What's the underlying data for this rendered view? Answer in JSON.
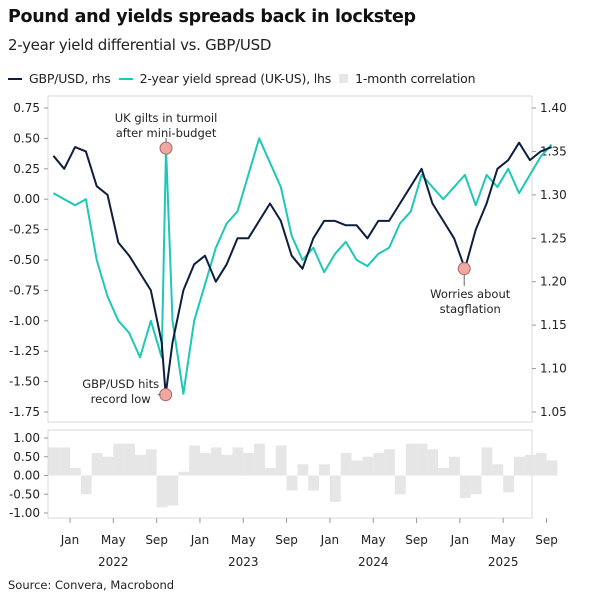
{
  "title": "Pound and yields spreads back in lockstep",
  "subtitle": "2-year yield differential vs. GBP/USD",
  "source": "Source: Convera, Macrobond",
  "colors": {
    "gbp": "#0d1f3c",
    "spread": "#1ec8b4",
    "corr": "#e6e6e6",
    "marker": "#f0a8a0"
  },
  "chart_data": [
    {
      "type": "line",
      "legend_position": "top",
      "series": [
        {
          "name": "GBP/USD, rhs",
          "axis": "right",
          "x": [
            "2021-11",
            "2021-12",
            "2022-01",
            "2022-02",
            "2022-03",
            "2022-04",
            "2022-05",
            "2022-06",
            "2022-07",
            "2022-08",
            "2022-09",
            "2022-09-26",
            "2022-10",
            "2022-11",
            "2022-12",
            "2023-01",
            "2023-02",
            "2023-03",
            "2023-04",
            "2023-05",
            "2023-06",
            "2023-07",
            "2023-08",
            "2023-09",
            "2023-10",
            "2023-11",
            "2023-12",
            "2024-01",
            "2024-02",
            "2024-03",
            "2024-04",
            "2024-05",
            "2024-06",
            "2024-07",
            "2024-08",
            "2024-09",
            "2024-10",
            "2024-11",
            "2024-12",
            "2025-01",
            "2025-02",
            "2025-03",
            "2025-04",
            "2025-05",
            "2025-06",
            "2025-07",
            "2025-08",
            "2025-09"
          ],
          "values": [
            1.345,
            1.33,
            1.355,
            1.35,
            1.31,
            1.3,
            1.245,
            1.23,
            1.21,
            1.19,
            1.13,
            1.07,
            1.13,
            1.19,
            1.22,
            1.23,
            1.2,
            1.22,
            1.25,
            1.25,
            1.27,
            1.29,
            1.27,
            1.23,
            1.215,
            1.25,
            1.27,
            1.27,
            1.265,
            1.265,
            1.25,
            1.27,
            1.27,
            1.29,
            1.31,
            1.33,
            1.29,
            1.27,
            1.25,
            1.215,
            1.26,
            1.29,
            1.33,
            1.34,
            1.36,
            1.34,
            1.35,
            1.355
          ]
        },
        {
          "name": "2-year yield spread (UK-US), lhs",
          "axis": "left",
          "x": [
            "2021-11",
            "2021-12",
            "2022-01",
            "2022-02",
            "2022-03",
            "2022-04",
            "2022-05",
            "2022-06",
            "2022-07",
            "2022-08",
            "2022-09",
            "2022-09-27",
            "2022-10",
            "2022-11",
            "2022-12",
            "2023-01",
            "2023-02",
            "2023-03",
            "2023-04",
            "2023-05",
            "2023-06",
            "2023-07",
            "2023-08",
            "2023-09",
            "2023-10",
            "2023-11",
            "2023-12",
            "2024-01",
            "2024-02",
            "2024-03",
            "2024-04",
            "2024-05",
            "2024-06",
            "2024-07",
            "2024-08",
            "2024-09",
            "2024-10",
            "2024-11",
            "2024-12",
            "2025-01",
            "2025-02",
            "2025-03",
            "2025-04",
            "2025-05",
            "2025-06",
            "2025-07",
            "2025-08",
            "2025-09"
          ],
          "values": [
            0.05,
            0.0,
            -0.05,
            0.0,
            -0.5,
            -0.8,
            -1.0,
            -1.1,
            -1.3,
            -1.0,
            -1.3,
            0.42,
            -1.0,
            -1.6,
            -1.0,
            -0.7,
            -0.4,
            -0.2,
            -0.1,
            0.2,
            0.5,
            0.3,
            0.1,
            -0.3,
            -0.5,
            -0.4,
            -0.6,
            -0.45,
            -0.35,
            -0.5,
            -0.55,
            -0.45,
            -0.4,
            -0.2,
            -0.1,
            0.2,
            0.1,
            0.0,
            0.1,
            0.2,
            -0.05,
            0.2,
            0.1,
            0.25,
            0.05,
            0.2,
            0.35,
            0.45
          ]
        }
      ],
      "left_ticks": [
        "0.75",
        "0.50",
        "0.25",
        "0.00",
        "-0.25",
        "-0.50",
        "-0.75",
        "-1.00",
        "-1.25",
        "-1.50",
        "-1.75"
      ],
      "right_ticks": [
        "1.40",
        "1.35",
        "1.30",
        "1.25",
        "1.20",
        "1.15",
        "1.10",
        "1.05"
      ],
      "ylim_left": [
        -1.75,
        0.75
      ],
      "ylim_right": [
        1.05,
        1.4
      ],
      "annotations": [
        {
          "text": [
            "UK gilts in turmoil",
            "after mini-budget"
          ],
          "x": "2022-09-27",
          "y": 0.42,
          "axis": "left"
        },
        {
          "text": [
            "GBP/USD hits",
            "record low"
          ],
          "x": "2022-09-26",
          "y": 1.07,
          "axis": "right"
        },
        {
          "text": [
            "Worries about",
            "stagflation"
          ],
          "x": "2025-01-13",
          "y": 1.215,
          "axis": "right"
        }
      ]
    },
    {
      "type": "area",
      "series": [
        {
          "name": "1-month correlation",
          "x": [
            "2021-11",
            "2021-12",
            "2022-01",
            "2022-02",
            "2022-03",
            "2022-04",
            "2022-05",
            "2022-06",
            "2022-07",
            "2022-08",
            "2022-09",
            "2022-10",
            "2022-11",
            "2022-12",
            "2023-01",
            "2023-02",
            "2023-03",
            "2023-04",
            "2023-05",
            "2023-06",
            "2023-07",
            "2023-08",
            "2023-09",
            "2023-10",
            "2023-11",
            "2023-12",
            "2024-01",
            "2024-02",
            "2024-03",
            "2024-04",
            "2024-05",
            "2024-06",
            "2024-07",
            "2024-08",
            "2024-09",
            "2024-10",
            "2024-11",
            "2024-12",
            "2025-01",
            "2025-02",
            "2025-03",
            "2025-04",
            "2025-05",
            "2025-06",
            "2025-07",
            "2025-08",
            "2025-09"
          ],
          "values": [
            0.75,
            0.75,
            0.2,
            -0.5,
            0.6,
            0.5,
            0.85,
            0.85,
            0.55,
            0.7,
            -0.85,
            -0.8,
            0.1,
            0.8,
            0.6,
            0.75,
            0.55,
            0.75,
            0.6,
            0.85,
            0.2,
            0.8,
            -0.4,
            0.3,
            -0.4,
            0.3,
            -0.7,
            0.6,
            0.4,
            0.5,
            0.6,
            0.7,
            -0.5,
            0.85,
            0.85,
            0.7,
            0.2,
            0.5,
            -0.6,
            -0.5,
            0.75,
            0.3,
            -0.45,
            0.5,
            0.55,
            0.6,
            0.4
          ]
        }
      ],
      "ticks": [
        "1.00",
        "0.50",
        "0.00",
        "-0.50",
        "-1.00"
      ],
      "ylim": [
        -1,
        1
      ]
    }
  ],
  "x_axis": {
    "months": [
      "Jan",
      "May",
      "Sep",
      "Jan",
      "May",
      "Sep",
      "Jan",
      "May",
      "Sep",
      "Jan",
      "May",
      "Sep"
    ],
    "years": [
      "2022",
      "2023",
      "2024",
      "2025"
    ]
  }
}
